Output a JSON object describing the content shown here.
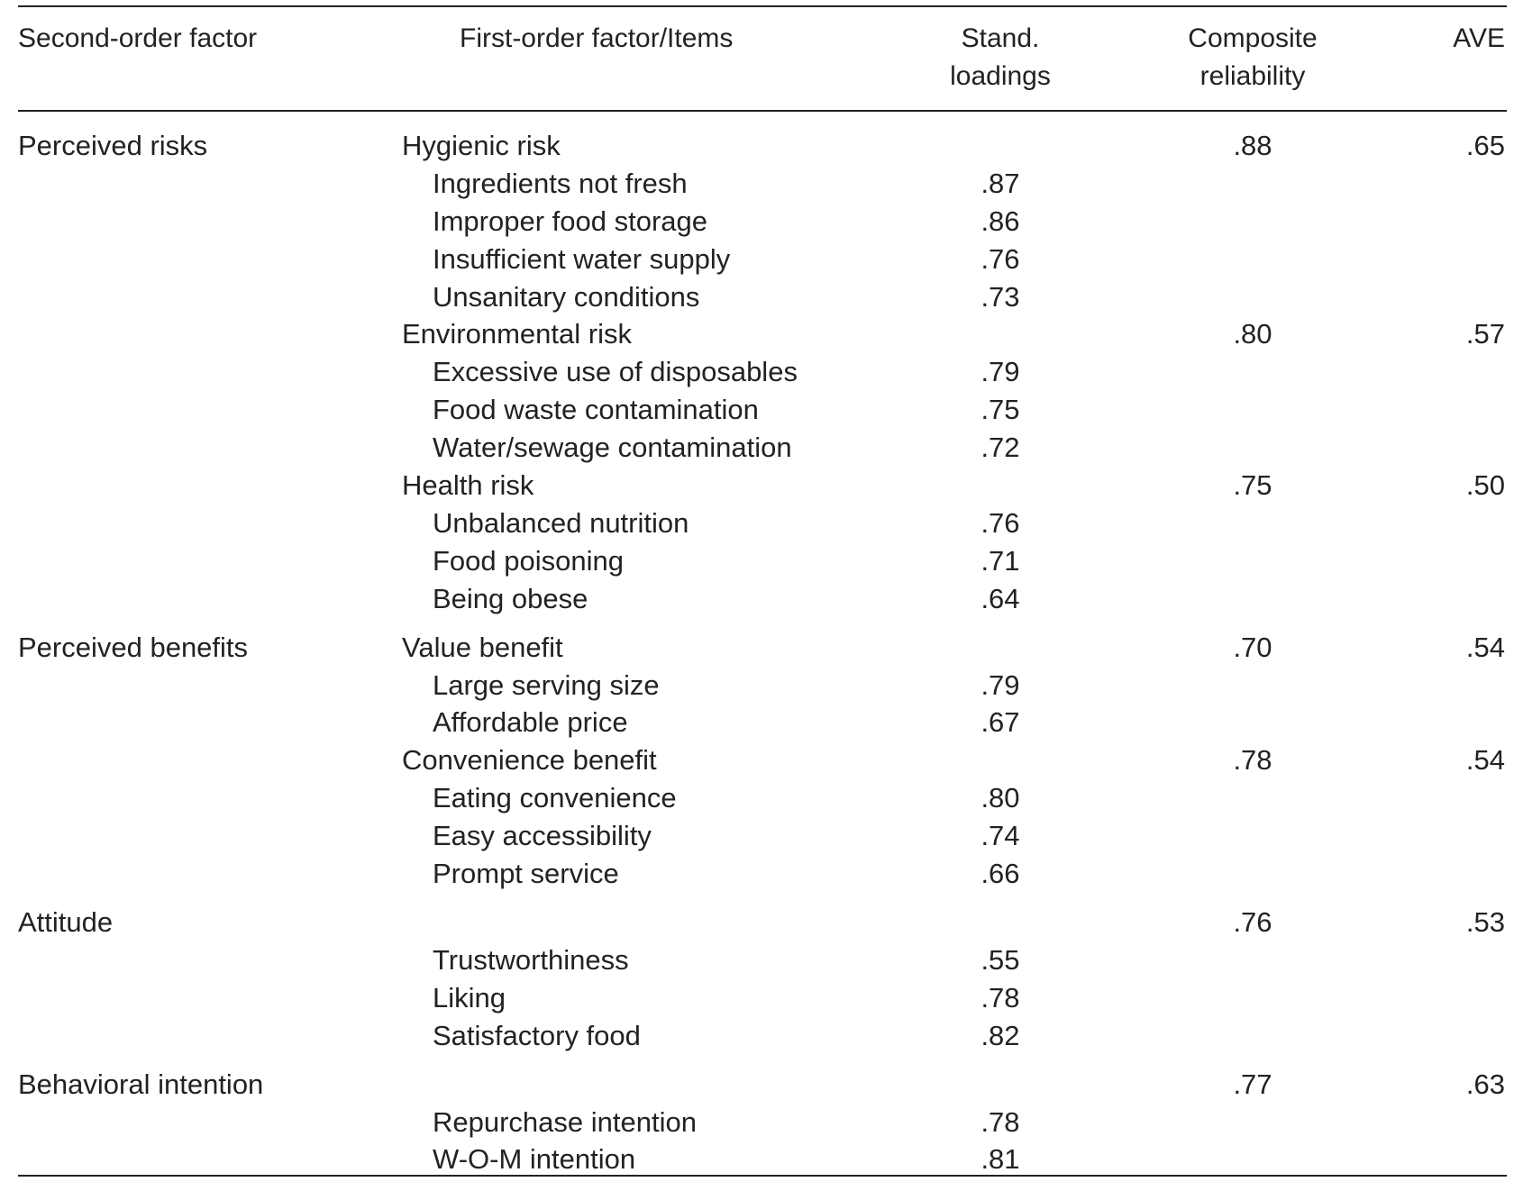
{
  "columns": {
    "second_order": "Second-order factor",
    "first_order": "First-order factor/Items",
    "loadings_line1": "Stand.",
    "loadings_line2": "loadings",
    "cr_line1": "Composite",
    "cr_line2": "reliability",
    "ave": "AVE"
  },
  "rows": [
    {
      "type": "factor",
      "second": "Perceived risks",
      "first": "Hygienic risk",
      "cr": ".88",
      "ave": ".65"
    },
    {
      "type": "item",
      "label": "Ingredients not fresh",
      "loading": ".87"
    },
    {
      "type": "item",
      "label": "Improper food storage",
      "loading": ".86"
    },
    {
      "type": "item",
      "label": "Insufficient water supply",
      "loading": ".76"
    },
    {
      "type": "item",
      "label": "Unsanitary conditions",
      "loading": ".73"
    },
    {
      "type": "factor",
      "second": "",
      "first": "Environmental risk",
      "cr": ".80",
      "ave": ".57"
    },
    {
      "type": "item",
      "label": "Excessive use of disposables",
      "loading": ".79"
    },
    {
      "type": "item",
      "label": "Food waste contamination",
      "loading": ".75"
    },
    {
      "type": "item",
      "label": "Water/sewage contamination",
      "loading": ".72"
    },
    {
      "type": "factor",
      "second": "",
      "first": "Health risk",
      "cr": ".75",
      "ave": ".50"
    },
    {
      "type": "item",
      "label": "Unbalanced nutrition",
      "loading": ".76"
    },
    {
      "type": "item",
      "label": "Food poisoning",
      "loading": ".71"
    },
    {
      "type": "item",
      "label": "Being obese",
      "loading": ".64"
    },
    {
      "type": "factor",
      "second": "Perceived benefits",
      "first": "Value benefit",
      "cr": ".70",
      "ave": ".54"
    },
    {
      "type": "item",
      "label": "Large serving size",
      "loading": ".79"
    },
    {
      "type": "item",
      "label": "Affordable price",
      "loading": ".67"
    },
    {
      "type": "factor",
      "second": "",
      "first": "Convenience benefit",
      "cr": ".78",
      "ave": ".54"
    },
    {
      "type": "item",
      "label": "Eating convenience",
      "loading": ".80"
    },
    {
      "type": "item",
      "label": "Easy accessibility",
      "loading": ".74"
    },
    {
      "type": "item",
      "label": "Prompt service",
      "loading": ".66"
    },
    {
      "type": "factor",
      "second": "Attitude",
      "first": "",
      "cr": ".76",
      "ave": ".53"
    },
    {
      "type": "item",
      "label": "Trustworthiness",
      "loading": ".55"
    },
    {
      "type": "item",
      "label": "Liking",
      "loading": ".78"
    },
    {
      "type": "item",
      "label": "Satisfactory food",
      "loading": ".82"
    },
    {
      "type": "factor",
      "second": "Behavioral intention",
      "first": "",
      "cr": ".77",
      "ave": ".63"
    },
    {
      "type": "item",
      "label": "Repurchase intention",
      "loading": ".78"
    },
    {
      "type": "item",
      "label": "W-O-M intention",
      "loading": ".81"
    }
  ]
}
